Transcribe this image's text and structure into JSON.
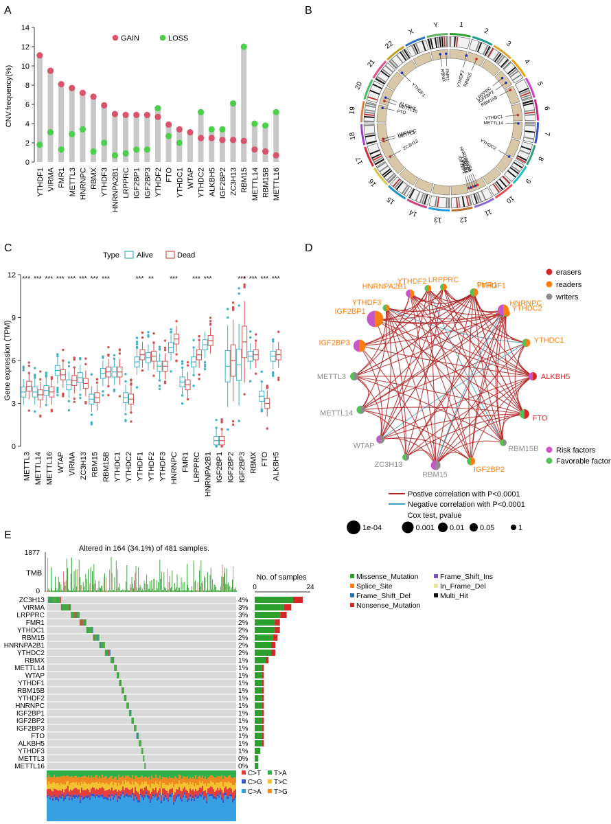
{
  "colors": {
    "gain": "#d9536b",
    "loss": "#4cd04c",
    "stem": "#c8c8c8",
    "alive": "#3fb1c8",
    "dead": "#d2534e",
    "eraser": "#d62728",
    "reader": "#ff7f0e",
    "writer": "#8c8c8c",
    "risk": "#c956c9",
    "favorable": "#55c055",
    "pos": "#b22222",
    "neg": "#3f9fbf",
    "missense": "#2ca02c",
    "splice": "#ff7f0e",
    "fsdel": "#1f77b4",
    "nonsense": "#d62728",
    "fsins": "#7b52b3",
    "inframe": "#e6e6a0",
    "multi": "#111111",
    "ct": "#e53c3c",
    "cg": "#3a55c8",
    "ca": "#37a0e0",
    "ta": "#2cb04c",
    "tc": "#f2c230",
    "tg": "#f08a20"
  },
  "panels": {
    "a": "A",
    "b": "B",
    "c": "C",
    "d": "D",
    "e": "E"
  },
  "chart_data": [
    {
      "type": "lollipop",
      "panel": "A",
      "ylabel": "CNV.frequency(%)",
      "ylim": [
        0,
        14
      ],
      "yticks": [
        0,
        2,
        4,
        6,
        8,
        10,
        12,
        14
      ],
      "legend": [
        "GAIN",
        "LOSS"
      ],
      "legend_position": "top",
      "categories": [
        "YTHDF1",
        "VIRMA",
        "FMR1",
        "METTL3",
        "HNRNPC",
        "RBMX",
        "YTHDF3",
        "HNRNPA2B1",
        "LRPPRC",
        "IGF2BP1",
        "IGF2BP3",
        "YTHDF2",
        "FTO",
        "YTHDC1",
        "WTAP",
        "YTHDC2",
        "ALKBH5",
        "IGF2BP2",
        "ZC3H13",
        "RBM15",
        "METTL14",
        "RBM15B",
        "METTL16"
      ],
      "series": [
        {
          "name": "GAIN",
          "values": [
            11.1,
            9.5,
            8.1,
            7.7,
            7.2,
            6.8,
            5.9,
            5.0,
            4.9,
            4.9,
            4.9,
            4.7,
            3.9,
            3.4,
            3.1,
            2.5,
            2.5,
            2.3,
            2.3,
            2.2,
            1.3,
            1.1,
            0.7
          ]
        },
        {
          "name": "LOSS",
          "values": [
            1.8,
            3.1,
            1.3,
            2.9,
            3.4,
            1.1,
            2.0,
            0.7,
            0.9,
            1.3,
            1.3,
            5.6,
            2.7,
            2.0,
            0,
            5.2,
            3.4,
            3.4,
            6.1,
            12.0,
            4.0,
            3.8,
            5.2
          ]
        }
      ]
    },
    {
      "type": "circos",
      "panel": "B",
      "chromosomes": [
        "1",
        "2",
        "3",
        "4",
        "5",
        "6",
        "7",
        "8",
        "9",
        "10",
        "11",
        "12",
        "13",
        "14",
        "15",
        "16",
        "17",
        "18",
        "19",
        "20",
        "21",
        "22",
        "X",
        "Y"
      ],
      "gene_labels": [
        "FMR1",
        "RBMX",
        "YTHDF2",
        "RBM15",
        "LRPPRC",
        "IGF2BP2",
        "RBM15B",
        "YTHDC1",
        "METTL14",
        "YTHDC2",
        "HNRNPA2B1",
        "WTAP",
        "YTHDF3",
        "VIRMA",
        "IGF2BP1",
        "ZC3H13",
        "METTL3",
        "HNRNPC",
        "FTO",
        "METTL16",
        "ALKBH5",
        "YTHDF1"
      ]
    },
    {
      "type": "box",
      "panel": "C",
      "ylabel": "Gene expression (TPM)",
      "ylim": [
        0,
        12
      ],
      "yticks": [
        0,
        3,
        6,
        9,
        12
      ],
      "legend_title": "Type",
      "legend": [
        "Alive",
        "Dead"
      ],
      "categories": [
        "METTL3",
        "METTL14",
        "METTL16",
        "WTAP",
        "VIRMA",
        "ZC3H13",
        "RBM15",
        "RBM15B",
        "YTHDC1",
        "YTHDC2",
        "YTHDF1",
        "YTHDF2",
        "YTHDF3",
        "HNRNPC",
        "FMR1",
        "LRPPRC",
        "HNRNPA2B1",
        "IGF2BP1",
        "IGF2BP2",
        "IGF2BP3",
        "RBMX",
        "FTO",
        "ALKBH5"
      ],
      "significance": [
        "***",
        "***",
        "***",
        "***",
        "***",
        "***",
        "***",
        "***",
        "",
        "",
        "***",
        "**",
        "",
        "***",
        "",
        "***",
        "***",
        "",
        "",
        "***",
        "***",
        "***",
        "***"
      ],
      "series": [
        {
          "name": "Alive",
          "median": [
            3.8,
            3.8,
            3.9,
            5.3,
            4.3,
            4.8,
            3.3,
            5.1,
            5.2,
            3.4,
            5.9,
            6.2,
            5.6,
            6.9,
            4.5,
            5.9,
            7.1,
            0.4,
            5.6,
            5.7,
            6.3,
            3.5,
            6.3
          ]
        },
        {
          "name": "Dead",
          "median": [
            4.2,
            3.6,
            3.8,
            5.0,
            4.6,
            4.4,
            3.4,
            5.2,
            5.2,
            3.3,
            6.4,
            6.3,
            5.6,
            7.5,
            4.3,
            6.4,
            7.4,
            0.4,
            6.0,
            7.3,
            6.4,
            3.0,
            6.4
          ]
        }
      ]
    },
    {
      "type": "network",
      "panel": "D",
      "nodes": [
        {
          "name": "YTHDF3",
          "group": "readers",
          "cox": "favorable"
        },
        {
          "name": "YTHDF2",
          "group": "readers",
          "cox": "favorable"
        },
        {
          "name": "YTHDF1",
          "group": "readers",
          "cox": "favorable"
        },
        {
          "name": "YTHDC2",
          "group": "readers",
          "cox": "favorable"
        },
        {
          "name": "YTHDC1",
          "group": "readers",
          "cox": "favorable"
        },
        {
          "name": "ALKBH5",
          "group": "erasers",
          "cox": "risk"
        },
        {
          "name": "FTO",
          "group": "erasers",
          "cox": "favorable"
        },
        {
          "name": "RBM15B",
          "group": "writers",
          "cox": "favorable"
        },
        {
          "name": "IGF2BP2",
          "group": "readers",
          "cox": "favorable"
        },
        {
          "name": "RBM15",
          "group": "writers",
          "cox": "risk"
        },
        {
          "name": "ZC3H13",
          "group": "writers",
          "cox": "favorable"
        },
        {
          "name": "WTAP",
          "group": "writers",
          "cox": "risk"
        },
        {
          "name": "METTL14",
          "group": "writers",
          "cox": "favorable"
        },
        {
          "name": "METTL3",
          "group": "writers",
          "cox": "favorable"
        },
        {
          "name": "IGF2BP3",
          "group": "readers",
          "cox": "risk"
        },
        {
          "name": "IGF2BP1",
          "group": "readers",
          "cox": "risk"
        },
        {
          "name": "HNRNPA2B1",
          "group": "readers",
          "cox": "risk"
        },
        {
          "name": "LRPPRC",
          "group": "readers",
          "cox": "favorable"
        },
        {
          "name": "FMR1",
          "group": "readers",
          "cox": "favorable"
        },
        {
          "name": "HNRNPC",
          "group": "readers",
          "cox": "risk"
        }
      ],
      "legend_groups": [
        "erasers",
        "readers",
        "writers"
      ],
      "legend_cox": [
        "Risk factors",
        "Favorable factors"
      ],
      "legend_lines": [
        "Postive correlation with P<0.0001",
        "Negative correlation with P<0.0001"
      ],
      "cox_title": "Cox test, pvalue",
      "cox_sizes": [
        "1e-04",
        "0.001",
        "0.01",
        "0.05",
        "1"
      ]
    },
    {
      "type": "oncoplot",
      "panel": "E",
      "title": "Altered in 164 (34.1%) of 481 samples.",
      "tmb_label": "TMB",
      "tmb_max": "1877",
      "tmb_min": "0",
      "count_title": "No. of samples",
      "count_ticks": [
        "0",
        "24"
      ],
      "genes": [
        "ZC3H13",
        "VIRMA",
        "LRPPRC",
        "FMR1",
        "YTHDC1",
        "RBM15",
        "HNRNPA2B1",
        "YTHDC2",
        "RBMX",
        "METTL14",
        "WTAP",
        "YTHDF1",
        "RBM15B",
        "YTHDF2",
        "HNRNPC",
        "IGF2BP1",
        "IGF2BP2",
        "IGF2BP3",
        "FTO",
        "ALKBH5",
        "YTHDF3",
        "METTL3",
        "METTL16"
      ],
      "percents": [
        "4%",
        "3%",
        "3%",
        "2%",
        "2%",
        "2%",
        "2%",
        "2%",
        "1%",
        "1%",
        "1%",
        "1%",
        "1%",
        "1%",
        "1%",
        "1%",
        "1%",
        "1%",
        "1%",
        "1%",
        "1%",
        "0%",
        "0%"
      ],
      "counts": [
        21,
        16,
        14,
        11,
        11,
        10,
        9,
        9,
        6,
        4,
        4,
        4,
        4,
        4,
        4,
        4,
        4,
        4,
        4,
        4,
        3,
        2,
        2
      ],
      "variant_legend": [
        "Missense_Mutation",
        "Splice_Site",
        "Frame_Shift_Del",
        "Nonsense_Mutation",
        "Frame_Shift_Ins",
        "In_Frame_Del",
        "Multi_Hit"
      ],
      "titv_legend": [
        "C>T",
        "C>G",
        "C>A",
        "T>A",
        "T>C",
        "T>G"
      ]
    }
  ]
}
